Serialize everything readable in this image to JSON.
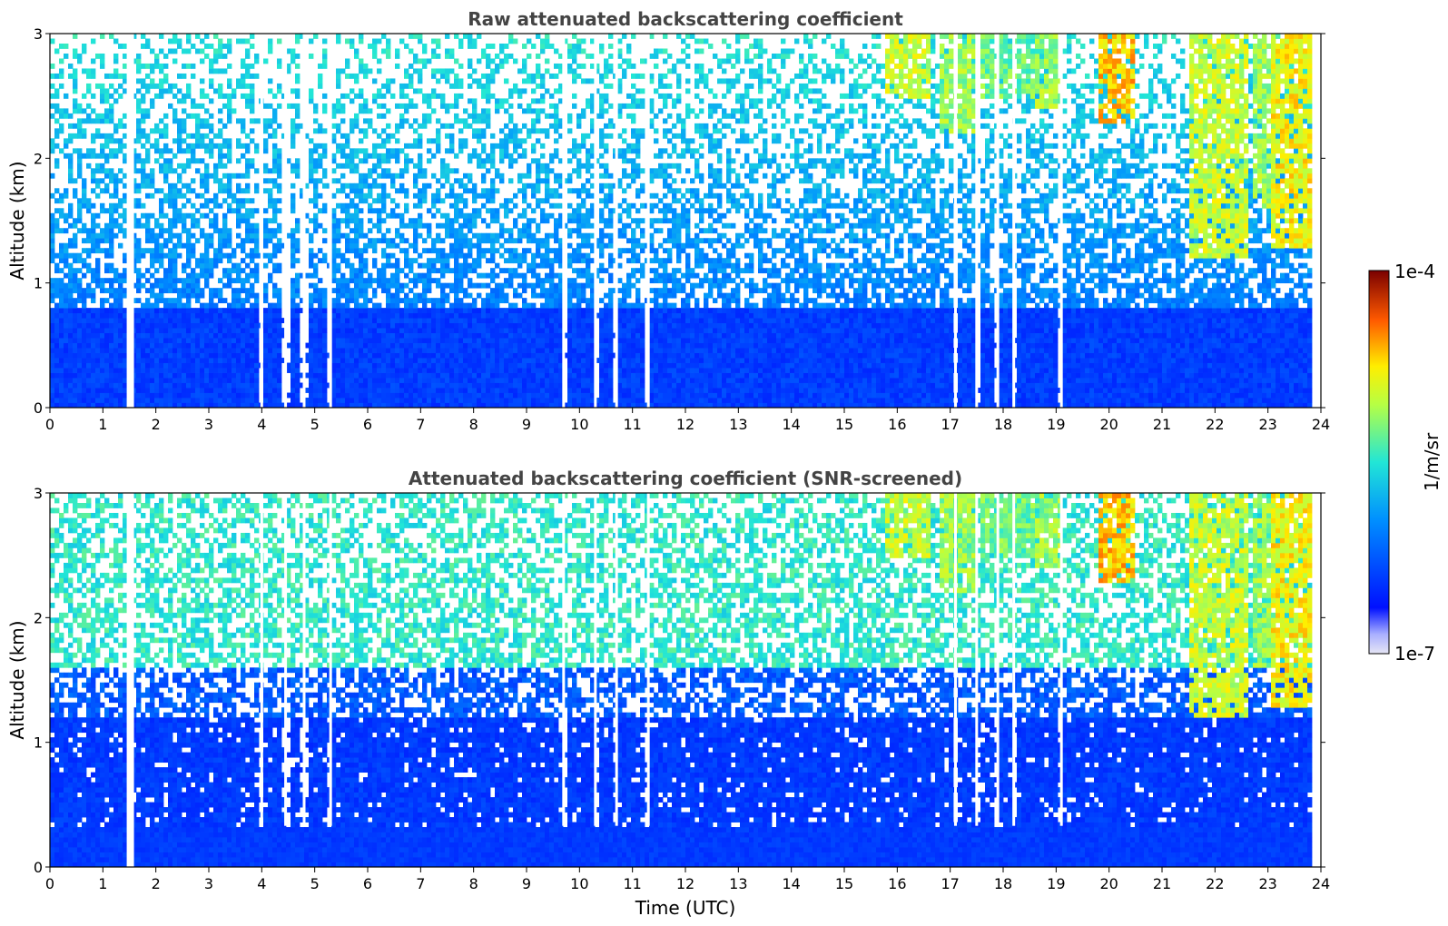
{
  "chart_data": [
    {
      "type": "heatmap",
      "title": "Raw attenuated backscattering coefficient",
      "xlabel": "",
      "ylabel": "Altitude (km)",
      "xlim": [
        0,
        24
      ],
      "ylim": [
        0,
        3
      ],
      "x_ticks": [
        "0",
        "1",
        "2",
        "3",
        "4",
        "5",
        "6",
        "7",
        "8",
        "9",
        "10",
        "11",
        "12",
        "13",
        "14",
        "15",
        "16",
        "17",
        "18",
        "19",
        "20",
        "21",
        "22",
        "23",
        "24"
      ],
      "y_ticks": [
        "0",
        "1",
        "2",
        "3"
      ],
      "data_end_time": 23.8,
      "gaps_time": [
        1.5,
        4.0,
        4.45,
        4.8,
        5.3,
        9.7,
        10.3,
        10.7,
        11.3,
        17.1,
        17.5,
        17.9,
        18.2,
        19.1
      ],
      "low_layer_top_km": 0.8,
      "cloud_layers": [
        {
          "start": 15.8,
          "end": 16.6,
          "base_km": 2.5,
          "level": 0.75
        },
        {
          "start": 16.8,
          "end": 17.5,
          "base_km": 2.2,
          "level": 0.7
        },
        {
          "start": 17.6,
          "end": 18.6,
          "base_km": 2.5,
          "level": 0.65
        },
        {
          "start": 18.6,
          "end": 19.1,
          "base_km": 2.4,
          "level": 0.7
        },
        {
          "start": 19.8,
          "end": 20.5,
          "base_km": 2.3,
          "level": 0.85
        },
        {
          "start": 21.5,
          "end": 22.6,
          "base_km": 1.2,
          "level": 0.75
        },
        {
          "start": 22.7,
          "end": 23.1,
          "base_km": 1.6,
          "level": 0.7
        },
        {
          "start": 23.1,
          "end": 23.8,
          "base_km": 1.3,
          "level": 0.8
        }
      ]
    },
    {
      "type": "heatmap",
      "title": "Attenuated backscattering coefficient (SNR-screened)",
      "xlabel": "Time (UTC)",
      "ylabel": "Altitude (km)",
      "xlim": [
        0,
        24
      ],
      "ylim": [
        0,
        3
      ],
      "x_ticks": [
        "0",
        "1",
        "2",
        "3",
        "4",
        "5",
        "6",
        "7",
        "8",
        "9",
        "10",
        "11",
        "12",
        "13",
        "14",
        "15",
        "16",
        "17",
        "18",
        "19",
        "20",
        "21",
        "22",
        "23",
        "24"
      ],
      "y_ticks": [
        "0",
        "1",
        "2",
        "3"
      ],
      "data_end_time": 23.8,
      "screened_base_km": 0.33,
      "dense_layer_top_km": 1.2,
      "gaps_time": [
        1.5,
        4.0,
        4.45,
        4.8,
        5.3,
        9.7,
        10.3,
        10.7,
        11.3,
        17.1,
        17.5,
        17.9,
        18.2,
        19.1
      ],
      "cloud_layers": [
        {
          "start": 15.8,
          "end": 16.6,
          "base_km": 2.5,
          "level": 0.75
        },
        {
          "start": 16.8,
          "end": 17.5,
          "base_km": 2.2,
          "level": 0.7
        },
        {
          "start": 17.6,
          "end": 18.6,
          "base_km": 2.5,
          "level": 0.65
        },
        {
          "start": 18.6,
          "end": 19.1,
          "base_km": 2.4,
          "level": 0.7
        },
        {
          "start": 19.8,
          "end": 20.5,
          "base_km": 2.3,
          "level": 0.85
        },
        {
          "start": 21.5,
          "end": 22.6,
          "base_km": 1.2,
          "level": 0.75
        },
        {
          "start": 22.7,
          "end": 23.1,
          "base_km": 1.6,
          "level": 0.7
        },
        {
          "start": 23.1,
          "end": 23.8,
          "base_km": 1.3,
          "level": 0.8
        }
      ]
    }
  ],
  "colorbar": {
    "label": "1/m/sr",
    "max_label": "1e-4",
    "min_label": "1e-7",
    "colormap": "jet",
    "colors": [
      "#e6e6f5",
      "#0010ff",
      "#00aaff",
      "#44ffbb",
      "#ffff00",
      "#ff6600",
      "#8b0000"
    ]
  }
}
